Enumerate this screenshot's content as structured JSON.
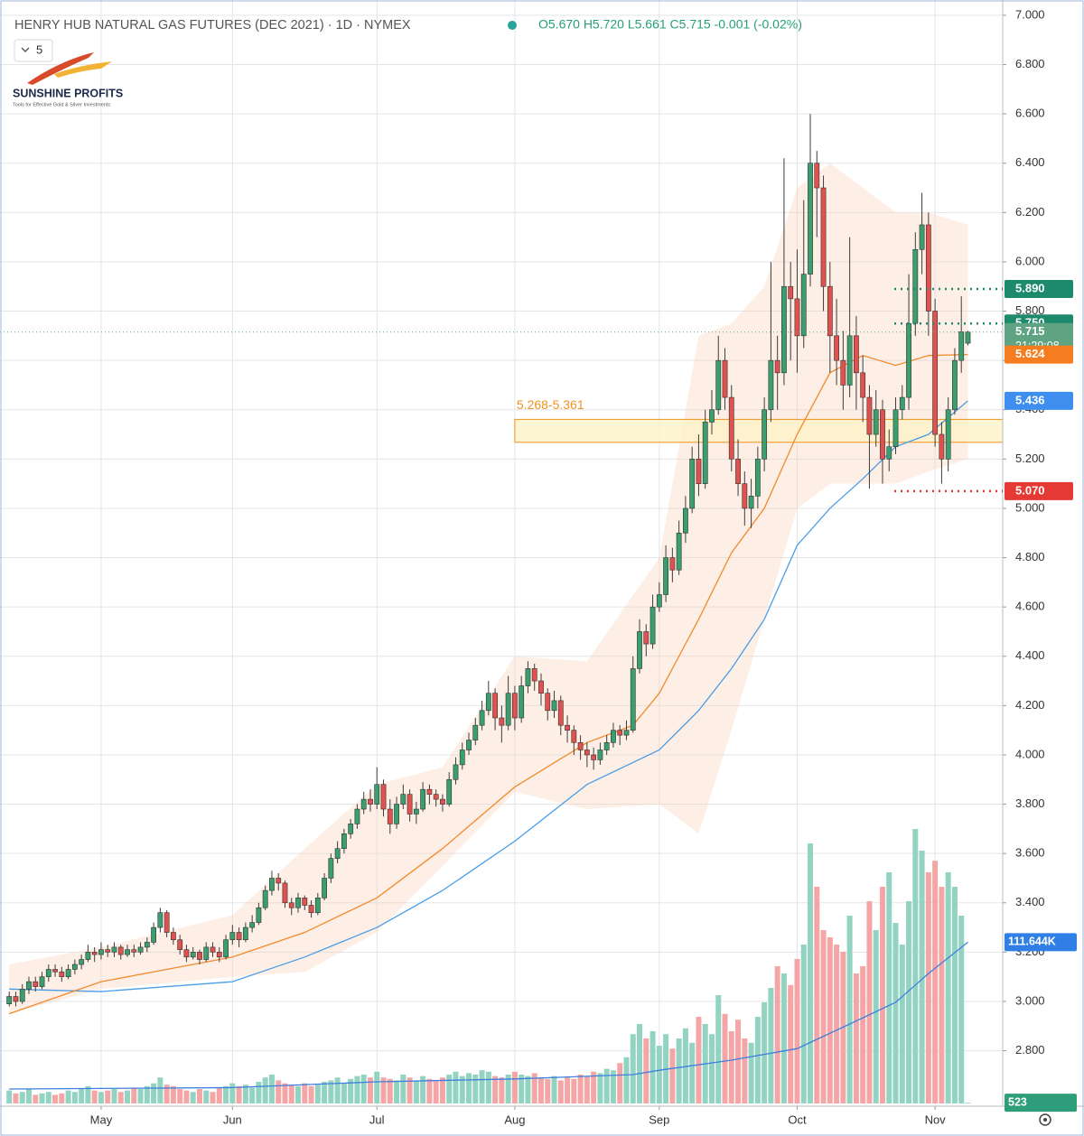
{
  "chart_data": {
    "type": "candlestick",
    "title": "HENRY HUB NATURAL GAS FUTURES (DEC 2021) · 1D · NYMEX",
    "header_values": "O5.670 H5.720 L5.661 C5.715 -0.001 (-0.02%)",
    "interval_count": "5",
    "logo": {
      "name": "SUNSHINE PROFITS",
      "tagline": "Tools for Effective Gold & Silver Investments"
    },
    "up_color": "#3a9e6e",
    "down_color": "#e0524f",
    "volume_up_color": "#93d3c2",
    "volume_down_color": "#f4a6a6",
    "xlim": [
      -1.4,
      151.3
    ],
    "ylim": [
      2.575,
      7.062
    ],
    "volume_lim": [
      0,
      250000
    ],
    "grid": true,
    "xticks": [
      {
        "value": 14,
        "label": "May"
      },
      {
        "value": 34,
        "label": "Jun"
      },
      {
        "value": 56,
        "label": "Jul"
      },
      {
        "value": 77,
        "label": "Aug"
      },
      {
        "value": 99,
        "label": "Sep"
      },
      {
        "value": 120,
        "label": "Oct"
      },
      {
        "value": 141,
        "label": "Nov"
      }
    ],
    "yticks": [
      {
        "value": 2.8,
        "label": "2.800"
      },
      {
        "value": 3,
        "label": "3.000"
      },
      {
        "value": 3.2,
        "label": "3.200"
      },
      {
        "value": 3.4,
        "label": "3.400"
      },
      {
        "value": 3.6,
        "label": "3.600"
      },
      {
        "value": 3.8,
        "label": "3.800"
      },
      {
        "value": 4,
        "label": "4.000"
      },
      {
        "value": 4.2,
        "label": "4.200"
      },
      {
        "value": 4.4,
        "label": "4.400"
      },
      {
        "value": 4.6,
        "label": "4.600"
      },
      {
        "value": 4.8,
        "label": "4.800"
      },
      {
        "value": 5,
        "label": "5.000"
      },
      {
        "value": 5.2,
        "label": "5.200"
      },
      {
        "value": 5.4,
        "label": "5.400"
      },
      {
        "value": 5.6,
        "label": "5.600"
      },
      {
        "value": 5.8,
        "label": "5.800"
      },
      {
        "value": 6,
        "label": "6.000"
      },
      {
        "value": 6.2,
        "label": "6.200"
      },
      {
        "value": 6.4,
        "label": "6.400"
      },
      {
        "value": 6.6,
        "label": "6.600"
      },
      {
        "value": 6.8,
        "label": "6.800"
      },
      {
        "value": 7,
        "label": "7.000"
      }
    ],
    "ohlc": [
      [
        2.99,
        3.04,
        2.98,
        3.02
      ],
      [
        3.02,
        3.04,
        2.98,
        3.0
      ],
      [
        3.0,
        3.07,
        2.99,
        3.05
      ],
      [
        3.05,
        3.1,
        3.03,
        3.08
      ],
      [
        3.08,
        3.1,
        3.04,
        3.06
      ],
      [
        3.06,
        3.12,
        3.05,
        3.1
      ],
      [
        3.1,
        3.15,
        3.08,
        3.13
      ],
      [
        3.13,
        3.15,
        3.1,
        3.12
      ],
      [
        3.12,
        3.14,
        3.08,
        3.1
      ],
      [
        3.1,
        3.15,
        3.09,
        3.13
      ],
      [
        3.13,
        3.17,
        3.11,
        3.15
      ],
      [
        3.15,
        3.19,
        3.13,
        3.17
      ],
      [
        3.17,
        3.23,
        3.16,
        3.2
      ],
      [
        3.2,
        3.22,
        3.16,
        3.19
      ],
      [
        3.19,
        3.24,
        3.17,
        3.21
      ],
      [
        3.21,
        3.23,
        3.18,
        3.2
      ],
      [
        3.2,
        3.24,
        3.18,
        3.22
      ],
      [
        3.22,
        3.23,
        3.17,
        3.19
      ],
      [
        3.19,
        3.23,
        3.18,
        3.21
      ],
      [
        3.21,
        3.23,
        3.18,
        3.2
      ],
      [
        3.2,
        3.24,
        3.19,
        3.22
      ],
      [
        3.22,
        3.26,
        3.2,
        3.24
      ],
      [
        3.24,
        3.32,
        3.23,
        3.3
      ],
      [
        3.3,
        3.38,
        3.28,
        3.36
      ],
      [
        3.36,
        3.37,
        3.26,
        3.28
      ],
      [
        3.28,
        3.3,
        3.23,
        3.25
      ],
      [
        3.25,
        3.27,
        3.19,
        3.21
      ],
      [
        3.21,
        3.23,
        3.16,
        3.18
      ],
      [
        3.18,
        3.22,
        3.17,
        3.2
      ],
      [
        3.2,
        3.21,
        3.15,
        3.17
      ],
      [
        3.17,
        3.24,
        3.16,
        3.22
      ],
      [
        3.22,
        3.24,
        3.18,
        3.2
      ],
      [
        3.2,
        3.22,
        3.16,
        3.18
      ],
      [
        3.18,
        3.27,
        3.17,
        3.25
      ],
      [
        3.25,
        3.31,
        3.23,
        3.28
      ],
      [
        3.28,
        3.3,
        3.22,
        3.25
      ],
      [
        3.25,
        3.32,
        3.24,
        3.3
      ],
      [
        3.3,
        3.35,
        3.28,
        3.32
      ],
      [
        3.32,
        3.4,
        3.31,
        3.38
      ],
      [
        3.38,
        3.47,
        3.37,
        3.45
      ],
      [
        3.45,
        3.53,
        3.43,
        3.5
      ],
      [
        3.5,
        3.52,
        3.45,
        3.48
      ],
      [
        3.48,
        3.49,
        3.38,
        3.4
      ],
      [
        3.4,
        3.42,
        3.35,
        3.38
      ],
      [
        3.38,
        3.44,
        3.36,
        3.42
      ],
      [
        3.42,
        3.43,
        3.37,
        3.39
      ],
      [
        3.39,
        3.41,
        3.34,
        3.36
      ],
      [
        3.36,
        3.44,
        3.35,
        3.42
      ],
      [
        3.42,
        3.52,
        3.41,
        3.5
      ],
      [
        3.5,
        3.6,
        3.48,
        3.58
      ],
      [
        3.58,
        3.65,
        3.56,
        3.62
      ],
      [
        3.62,
        3.7,
        3.6,
        3.68
      ],
      [
        3.68,
        3.74,
        3.66,
        3.72
      ],
      [
        3.72,
        3.8,
        3.7,
        3.78
      ],
      [
        3.78,
        3.85,
        3.76,
        3.82
      ],
      [
        3.82,
        3.86,
        3.77,
        3.8
      ],
      [
        3.8,
        3.95,
        3.78,
        3.88
      ],
      [
        3.88,
        3.9,
        3.75,
        3.78
      ],
      [
        3.78,
        3.82,
        3.68,
        3.72
      ],
      [
        3.72,
        3.83,
        3.7,
        3.8
      ],
      [
        3.8,
        3.88,
        3.78,
        3.84
      ],
      [
        3.84,
        3.86,
        3.73,
        3.76
      ],
      [
        3.76,
        3.81,
        3.72,
        3.78
      ],
      [
        3.78,
        3.89,
        3.77,
        3.86
      ],
      [
        3.86,
        3.88,
        3.8,
        3.84
      ],
      [
        3.84,
        3.86,
        3.79,
        3.82
      ],
      [
        3.82,
        3.84,
        3.77,
        3.8
      ],
      [
        3.8,
        3.93,
        3.79,
        3.9
      ],
      [
        3.9,
        3.99,
        3.88,
        3.96
      ],
      [
        3.96,
        4.05,
        3.94,
        4.02
      ],
      [
        4.02,
        4.09,
        4.0,
        4.06
      ],
      [
        4.06,
        4.15,
        4.04,
        4.12
      ],
      [
        4.12,
        4.22,
        4.1,
        4.18
      ],
      [
        4.18,
        4.3,
        4.16,
        4.25
      ],
      [
        4.25,
        4.27,
        4.1,
        4.15
      ],
      [
        4.15,
        4.2,
        4.05,
        4.12
      ],
      [
        4.12,
        4.32,
        4.1,
        4.25
      ],
      [
        4.25,
        4.28,
        4.1,
        4.15
      ],
      [
        4.15,
        4.32,
        4.13,
        4.28
      ],
      [
        4.28,
        4.38,
        4.25,
        4.35
      ],
      [
        4.35,
        4.37,
        4.26,
        4.3
      ],
      [
        4.3,
        4.33,
        4.2,
        4.25
      ],
      [
        4.25,
        4.27,
        4.14,
        4.18
      ],
      [
        4.18,
        4.26,
        4.15,
        4.22
      ],
      [
        4.22,
        4.24,
        4.08,
        4.12
      ],
      [
        4.12,
        4.16,
        4.05,
        4.1
      ],
      [
        4.1,
        4.12,
        4.0,
        4.05
      ],
      [
        4.05,
        4.08,
        3.98,
        4.02
      ],
      [
        4.02,
        4.05,
        3.95,
        4.0
      ],
      [
        4.0,
        4.03,
        3.94,
        3.98
      ],
      [
        3.98,
        4.05,
        3.96,
        4.02
      ],
      [
        4.02,
        4.08,
        4.0,
        4.05
      ],
      [
        4.05,
        4.13,
        4.03,
        4.1
      ],
      [
        4.1,
        4.12,
        4.04,
        4.08
      ],
      [
        4.08,
        4.14,
        4.06,
        4.1
      ],
      [
        4.1,
        4.4,
        4.09,
        4.35
      ],
      [
        4.35,
        4.55,
        4.33,
        4.5
      ],
      [
        4.5,
        4.53,
        4.4,
        4.45
      ],
      [
        4.45,
        4.65,
        4.43,
        4.6
      ],
      [
        4.6,
        4.7,
        4.58,
        4.65
      ],
      [
        4.65,
        4.85,
        4.62,
        4.8
      ],
      [
        4.8,
        4.84,
        4.7,
        4.75
      ],
      [
        4.75,
        4.95,
        4.73,
        4.9
      ],
      [
        4.9,
        5.05,
        4.86,
        5.0
      ],
      [
        5.0,
        5.25,
        4.98,
        5.2
      ],
      [
        5.2,
        5.3,
        5.05,
        5.1
      ],
      [
        5.1,
        5.4,
        5.08,
        5.35
      ],
      [
        5.35,
        5.48,
        5.3,
        5.4
      ],
      [
        5.4,
        5.7,
        5.38,
        5.6
      ],
      [
        5.6,
        5.65,
        5.4,
        5.45
      ],
      [
        5.45,
        5.5,
        5.15,
        5.2
      ],
      [
        5.2,
        5.28,
        5.05,
        5.1
      ],
      [
        5.1,
        5.15,
        4.93,
        5.0
      ],
      [
        5.0,
        5.12,
        4.92,
        5.05
      ],
      [
        5.05,
        5.25,
        5.0,
        5.2
      ],
      [
        5.2,
        5.45,
        5.15,
        5.4
      ],
      [
        5.4,
        6.0,
        5.35,
        5.6
      ],
      [
        5.6,
        5.7,
        5.4,
        5.55
      ],
      [
        5.55,
        6.42,
        5.5,
        5.9
      ],
      [
        5.9,
        6.0,
        5.6,
        5.85
      ],
      [
        5.85,
        6.05,
        5.55,
        5.7
      ],
      [
        5.7,
        6.25,
        5.65,
        5.95
      ],
      [
        5.95,
        6.6,
        5.9,
        6.4
      ],
      [
        6.4,
        6.45,
        6.1,
        6.3
      ],
      [
        6.3,
        6.35,
        5.8,
        5.9
      ],
      [
        5.9,
        6.0,
        5.55,
        5.7
      ],
      [
        5.7,
        5.85,
        5.5,
        5.6
      ],
      [
        5.6,
        5.72,
        5.4,
        5.5
      ],
      [
        5.5,
        6.1,
        5.45,
        5.7
      ],
      [
        5.7,
        5.78,
        5.4,
        5.55
      ],
      [
        5.55,
        5.62,
        5.35,
        5.45
      ],
      [
        5.45,
        5.5,
        5.08,
        5.3
      ],
      [
        5.3,
        5.48,
        5.25,
        5.4
      ],
      [
        5.4,
        5.44,
        5.1,
        5.2
      ],
      [
        5.2,
        5.32,
        5.15,
        5.25
      ],
      [
        5.25,
        5.45,
        5.22,
        5.4
      ],
      [
        5.4,
        5.5,
        5.36,
        5.45
      ],
      [
        5.45,
        5.95,
        5.4,
        5.75
      ],
      [
        5.75,
        6.12,
        5.7,
        6.05
      ],
      [
        6.05,
        6.28,
        5.95,
        6.15
      ],
      [
        6.15,
        6.2,
        5.7,
        5.8
      ],
      [
        5.8,
        5.85,
        5.25,
        5.3
      ],
      [
        5.3,
        5.35,
        5.1,
        5.2
      ],
      [
        5.2,
        5.45,
        5.15,
        5.4
      ],
      [
        5.4,
        5.65,
        5.38,
        5.6
      ],
      [
        5.6,
        5.86,
        5.55,
        5.716
      ],
      [
        5.67,
        5.72,
        5.661,
        5.715
      ]
    ],
    "volume": [
      9000,
      7000,
      8000,
      10000,
      6000,
      7000,
      8000,
      6000,
      7000,
      9000,
      8000,
      10000,
      12000,
      9000,
      8000,
      9000,
      10000,
      8000,
      9000,
      11000,
      10000,
      12000,
      14000,
      18000,
      13000,
      12000,
      10000,
      9000,
      8000,
      10000,
      9000,
      8000,
      11000,
      12000,
      14000,
      12000,
      13000,
      11000,
      15000,
      18000,
      20000,
      16000,
      14000,
      13000,
      12000,
      14000,
      12000,
      13000,
      15000,
      16000,
      18000,
      14000,
      17000,
      19000,
      20000,
      18000,
      22000,
      18000,
      17000,
      16000,
      20000,
      18000,
      16000,
      19000,
      17000,
      16000,
      18000,
      20000,
      22000,
      19000,
      21000,
      20000,
      23000,
      22000,
      19000,
      18000,
      20000,
      22000,
      20000,
      19000,
      21000,
      18000,
      17000,
      19000,
      16000,
      18000,
      17000,
      20000,
      19000,
      22000,
      21000,
      24000,
      23000,
      28000,
      32000,
      48000,
      55000,
      45000,
      50000,
      40000,
      48000,
      38000,
      45000,
      52000,
      42000,
      60000,
      55000,
      48000,
      75000,
      62000,
      50000,
      58000,
      45000,
      42000,
      60000,
      70000,
      80000,
      95000,
      90000,
      82000,
      100000,
      110000,
      180000,
      150000,
      120000,
      115000,
      110000,
      105000,
      130000,
      90000,
      95000,
      140000,
      120000,
      150000,
      160000,
      125000,
      110000,
      140000,
      190000,
      175000,
      160000,
      168000,
      150000,
      160000,
      150000,
      130000,
      523
    ],
    "envelope": {
      "x": [
        0,
        14,
        34,
        45,
        56,
        66,
        77,
        88,
        99,
        105,
        110,
        115,
        120,
        125,
        130,
        135,
        140,
        146
      ],
      "upper": [
        3.15,
        3.22,
        3.35,
        3.62,
        3.88,
        3.95,
        4.4,
        4.38,
        4.8,
        5.7,
        5.75,
        5.9,
        6.3,
        6.4,
        6.3,
        6.2,
        6.2,
        6.15
      ],
      "lower": [
        2.95,
        3.05,
        3.1,
        3.12,
        3.28,
        3.55,
        3.85,
        3.78,
        3.8,
        3.68,
        4.1,
        4.55,
        5.0,
        5.1,
        5.1,
        5.1,
        5.15,
        5.2
      ],
      "color": "#f8c9a8"
    },
    "ma_fast": {
      "x": [
        0,
        14,
        34,
        45,
        56,
        66,
        77,
        88,
        95,
        99,
        105,
        110,
        115,
        120,
        125,
        130,
        135,
        140,
        146
      ],
      "values": [
        2.95,
        3.08,
        3.18,
        3.28,
        3.42,
        3.62,
        3.87,
        4.05,
        4.12,
        4.25,
        4.55,
        4.82,
        5.0,
        5.3,
        5.55,
        5.62,
        5.58,
        5.62,
        5.624
      ],
      "color": "#f28a2e"
    },
    "ma_slow": {
      "x": [
        0,
        14,
        34,
        45,
        56,
        66,
        77,
        88,
        99,
        105,
        110,
        115,
        120,
        125,
        130,
        135,
        140,
        146
      ],
      "values": [
        3.05,
        3.04,
        3.08,
        3.18,
        3.3,
        3.45,
        3.65,
        3.88,
        4.02,
        4.18,
        4.35,
        4.55,
        4.85,
        5.0,
        5.12,
        5.25,
        5.3,
        5.436
      ],
      "color": "#4a9de8"
    },
    "volume_ma": {
      "x": [
        0,
        34,
        56,
        77,
        95,
        99,
        110,
        120,
        128,
        135,
        140,
        146
      ],
      "values": [
        10000,
        11000,
        15000,
        17000,
        20000,
        23000,
        30000,
        38000,
        55000,
        70000,
        90000,
        111644
      ],
      "color": "#3d7fe0"
    },
    "zone": {
      "from": 5.268,
      "to": 5.361,
      "label": "5.268-5.361",
      "start": 77,
      "color": "#f0931e"
    },
    "price_labels": [
      {
        "value": 5.89,
        "label": "5.890",
        "color": "#1e8a6c",
        "line": "dotted"
      },
      {
        "value": 5.75,
        "label": "5.750",
        "color": "#1e8a6c",
        "line": "dotted"
      },
      {
        "value": 5.715,
        "label": "5.715",
        "color": "#5fa383",
        "countdown": "21:29:08",
        "line": "fine"
      },
      {
        "value": 5.624,
        "label": "5.624",
        "color": "#f57c1f"
      },
      {
        "value": 5.436,
        "label": "5.436",
        "color": "#3e8ef0"
      },
      {
        "value": 5.07,
        "label": "5.070",
        "color": "#e53935",
        "line": "dotted"
      }
    ],
    "volume_labels": [
      {
        "value": 111644,
        "label": "111.644K",
        "color": "#2f7fe6"
      },
      {
        "value": 523,
        "label": "523",
        "color": "#2e9e7a"
      }
    ]
  }
}
